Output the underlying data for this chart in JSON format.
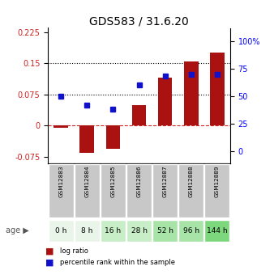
{
  "title": "GDS583 / 31.6.20",
  "samples": [
    "GSM12883",
    "GSM12884",
    "GSM12885",
    "GSM12886",
    "GSM12887",
    "GSM12888",
    "GSM12889"
  ],
  "ages": [
    "0 h",
    "8 h",
    "16 h",
    "28 h",
    "52 h",
    "96 h",
    "144 h"
  ],
  "log_ratio": [
    -0.005,
    -0.065,
    -0.055,
    0.05,
    0.115,
    0.155,
    0.175
  ],
  "percentile_rank": [
    50,
    42,
    38,
    60,
    68,
    70,
    70
  ],
  "bar_color": "#aa1111",
  "dot_color": "#1111cc",
  "left_ylim": [
    -0.09,
    0.235
  ],
  "right_ylim": [
    -10.6,
    111.8
  ],
  "left_yticks": [
    -0.075,
    0,
    0.075,
    0.15,
    0.225
  ],
  "right_yticks": [
    0,
    25,
    50,
    75,
    100
  ],
  "right_yticklabels": [
    "0",
    "25",
    "50",
    "75",
    "100%"
  ],
  "hline_dotted": [
    0.075,
    0.15
  ],
  "hline_dashed_color": "#cc2222",
  "age_colors": [
    "#eaf5ea",
    "#eaf5ea",
    "#c8eec8",
    "#c8eec8",
    "#a8e4a8",
    "#a8e4a8",
    "#7dd87d"
  ],
  "gsm_bg": "#c8c8c8",
  "legend_items": [
    "log ratio",
    "percentile rank within the sample"
  ],
  "title_fontsize": 10,
  "tick_fontsize": 7,
  "bar_width": 0.55
}
